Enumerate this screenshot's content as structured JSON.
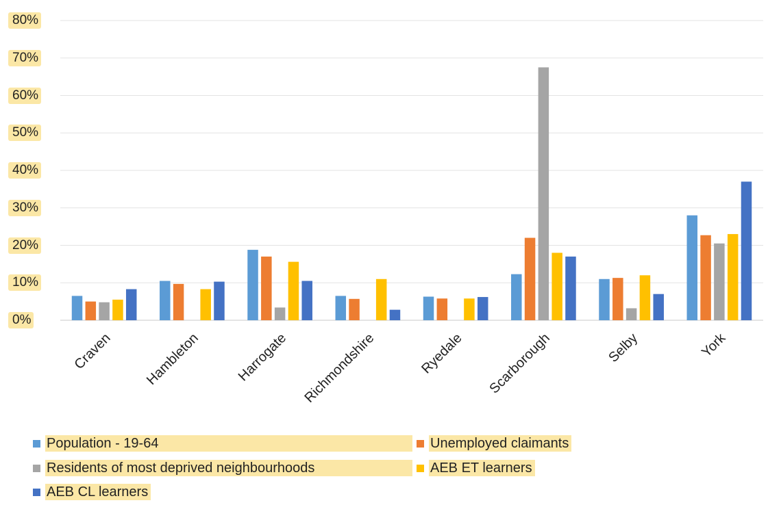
{
  "chart_data": {
    "type": "bar",
    "categories": [
      "Craven",
      "Hambleton",
      "Harrogate",
      "Richmondshire",
      "Ryedale",
      "Scarborough",
      "Selby",
      "York"
    ],
    "series": [
      {
        "name": "Population - 19-64",
        "color": "#5b9bd5",
        "values": [
          6.5,
          10.5,
          18.8,
          6.5,
          6.3,
          12.3,
          11,
          28
        ]
      },
      {
        "name": "Unemployed claimants",
        "color": "#ed7d31",
        "values": [
          5,
          9.7,
          17,
          5.7,
          5.8,
          22,
          11.3,
          22.7
        ]
      },
      {
        "name": "Residents of most deprived neighbourhoods",
        "color": "#a5a5a5",
        "values": [
          4.8,
          0,
          3.4,
          0,
          0,
          67.5,
          3.2,
          20.5
        ]
      },
      {
        "name": "AEB ET learners",
        "color": "#ffc000",
        "values": [
          5.5,
          8.3,
          15.6,
          11,
          5.8,
          18,
          12,
          23
        ]
      },
      {
        "name": "AEB CL learners",
        "color": "#4472c4",
        "values": [
          8.3,
          10.3,
          10.5,
          2.8,
          6.2,
          17,
          7,
          37
        ]
      }
    ],
    "yticks": [
      "0%",
      "10%",
      "20%",
      "30%",
      "40%",
      "50%",
      "60%",
      "70%",
      "80%"
    ],
    "ylim": [
      0,
      80
    ],
    "grid": true,
    "legend_position": "bottom"
  }
}
